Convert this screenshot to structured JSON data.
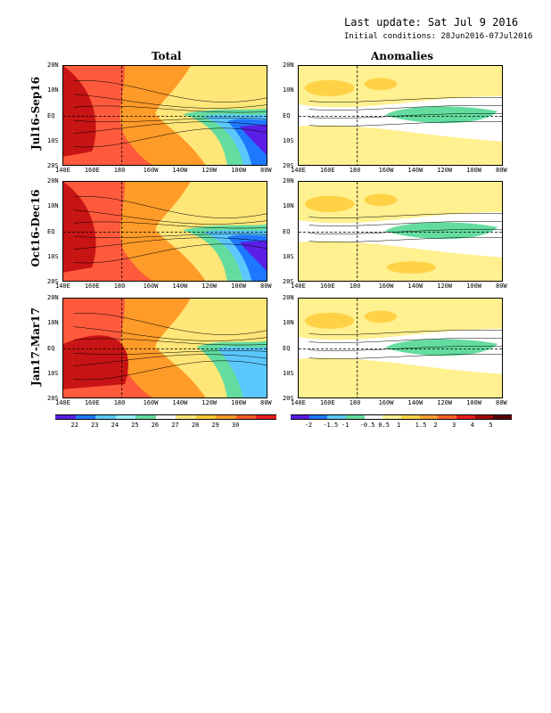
{
  "header": {
    "last_update": "Last update: Sat Jul  9 2016",
    "initial_conditions": "Initial conditions: 28Jun2016-07Jul2016"
  },
  "columns": {
    "total": "Total",
    "anomalies": "Anomalies"
  },
  "rows": [
    {
      "label": "Jul16-Sep16"
    },
    {
      "label": "Oct16-Dec16"
    },
    {
      "label": "Jan17-Mar17"
    }
  ],
  "lat_ticks": [
    "20N",
    "10N",
    "EQ",
    "10S",
    "20S"
  ],
  "lon_ticks": [
    "140E",
    "160E",
    "180",
    "160W",
    "140W",
    "120W",
    "100W",
    "80W"
  ],
  "total_colorbar": {
    "labels": [
      "22",
      "23",
      "24",
      "25",
      "26",
      "27",
      "28",
      "29",
      "30"
    ],
    "colors": [
      "#5a1ee6",
      "#1e78ff",
      "#5ac8ff",
      "#96f0ff",
      "#64dca0",
      "#ffffff",
      "#ffe678",
      "#ffc832",
      "#ff9b28",
      "#ff5a28",
      "#e61e1e"
    ]
  },
  "anom_colorbar": {
    "labels": [
      "-2",
      "-1.5",
      "-1",
      "-0.5",
      "0.5",
      "1",
      "1.5",
      "2",
      "3",
      "4",
      "5"
    ],
    "colors": [
      "#5a1ee6",
      "#1e78ff",
      "#5ac8ff",
      "#64dca0",
      "#ffffff",
      "#fff090",
      "#ffd246",
      "#ffa032",
      "#ff6428",
      "#e61e1e",
      "#a00a0a",
      "#5a0000"
    ]
  },
  "total_palette": {
    "warm_dark": "#c81414",
    "warm": "#ff5a3c",
    "orange": "#ff9b28",
    "yellow": "#ffe678",
    "cyan": "#64dca0",
    "light_blue": "#5ac8ff",
    "blue": "#1e78ff",
    "purple": "#5a1ee6"
  },
  "anom_palette": {
    "neutral": "#ffffff",
    "pale": "#fff090",
    "light": "#ffd246",
    "cool": "#64dca0"
  }
}
